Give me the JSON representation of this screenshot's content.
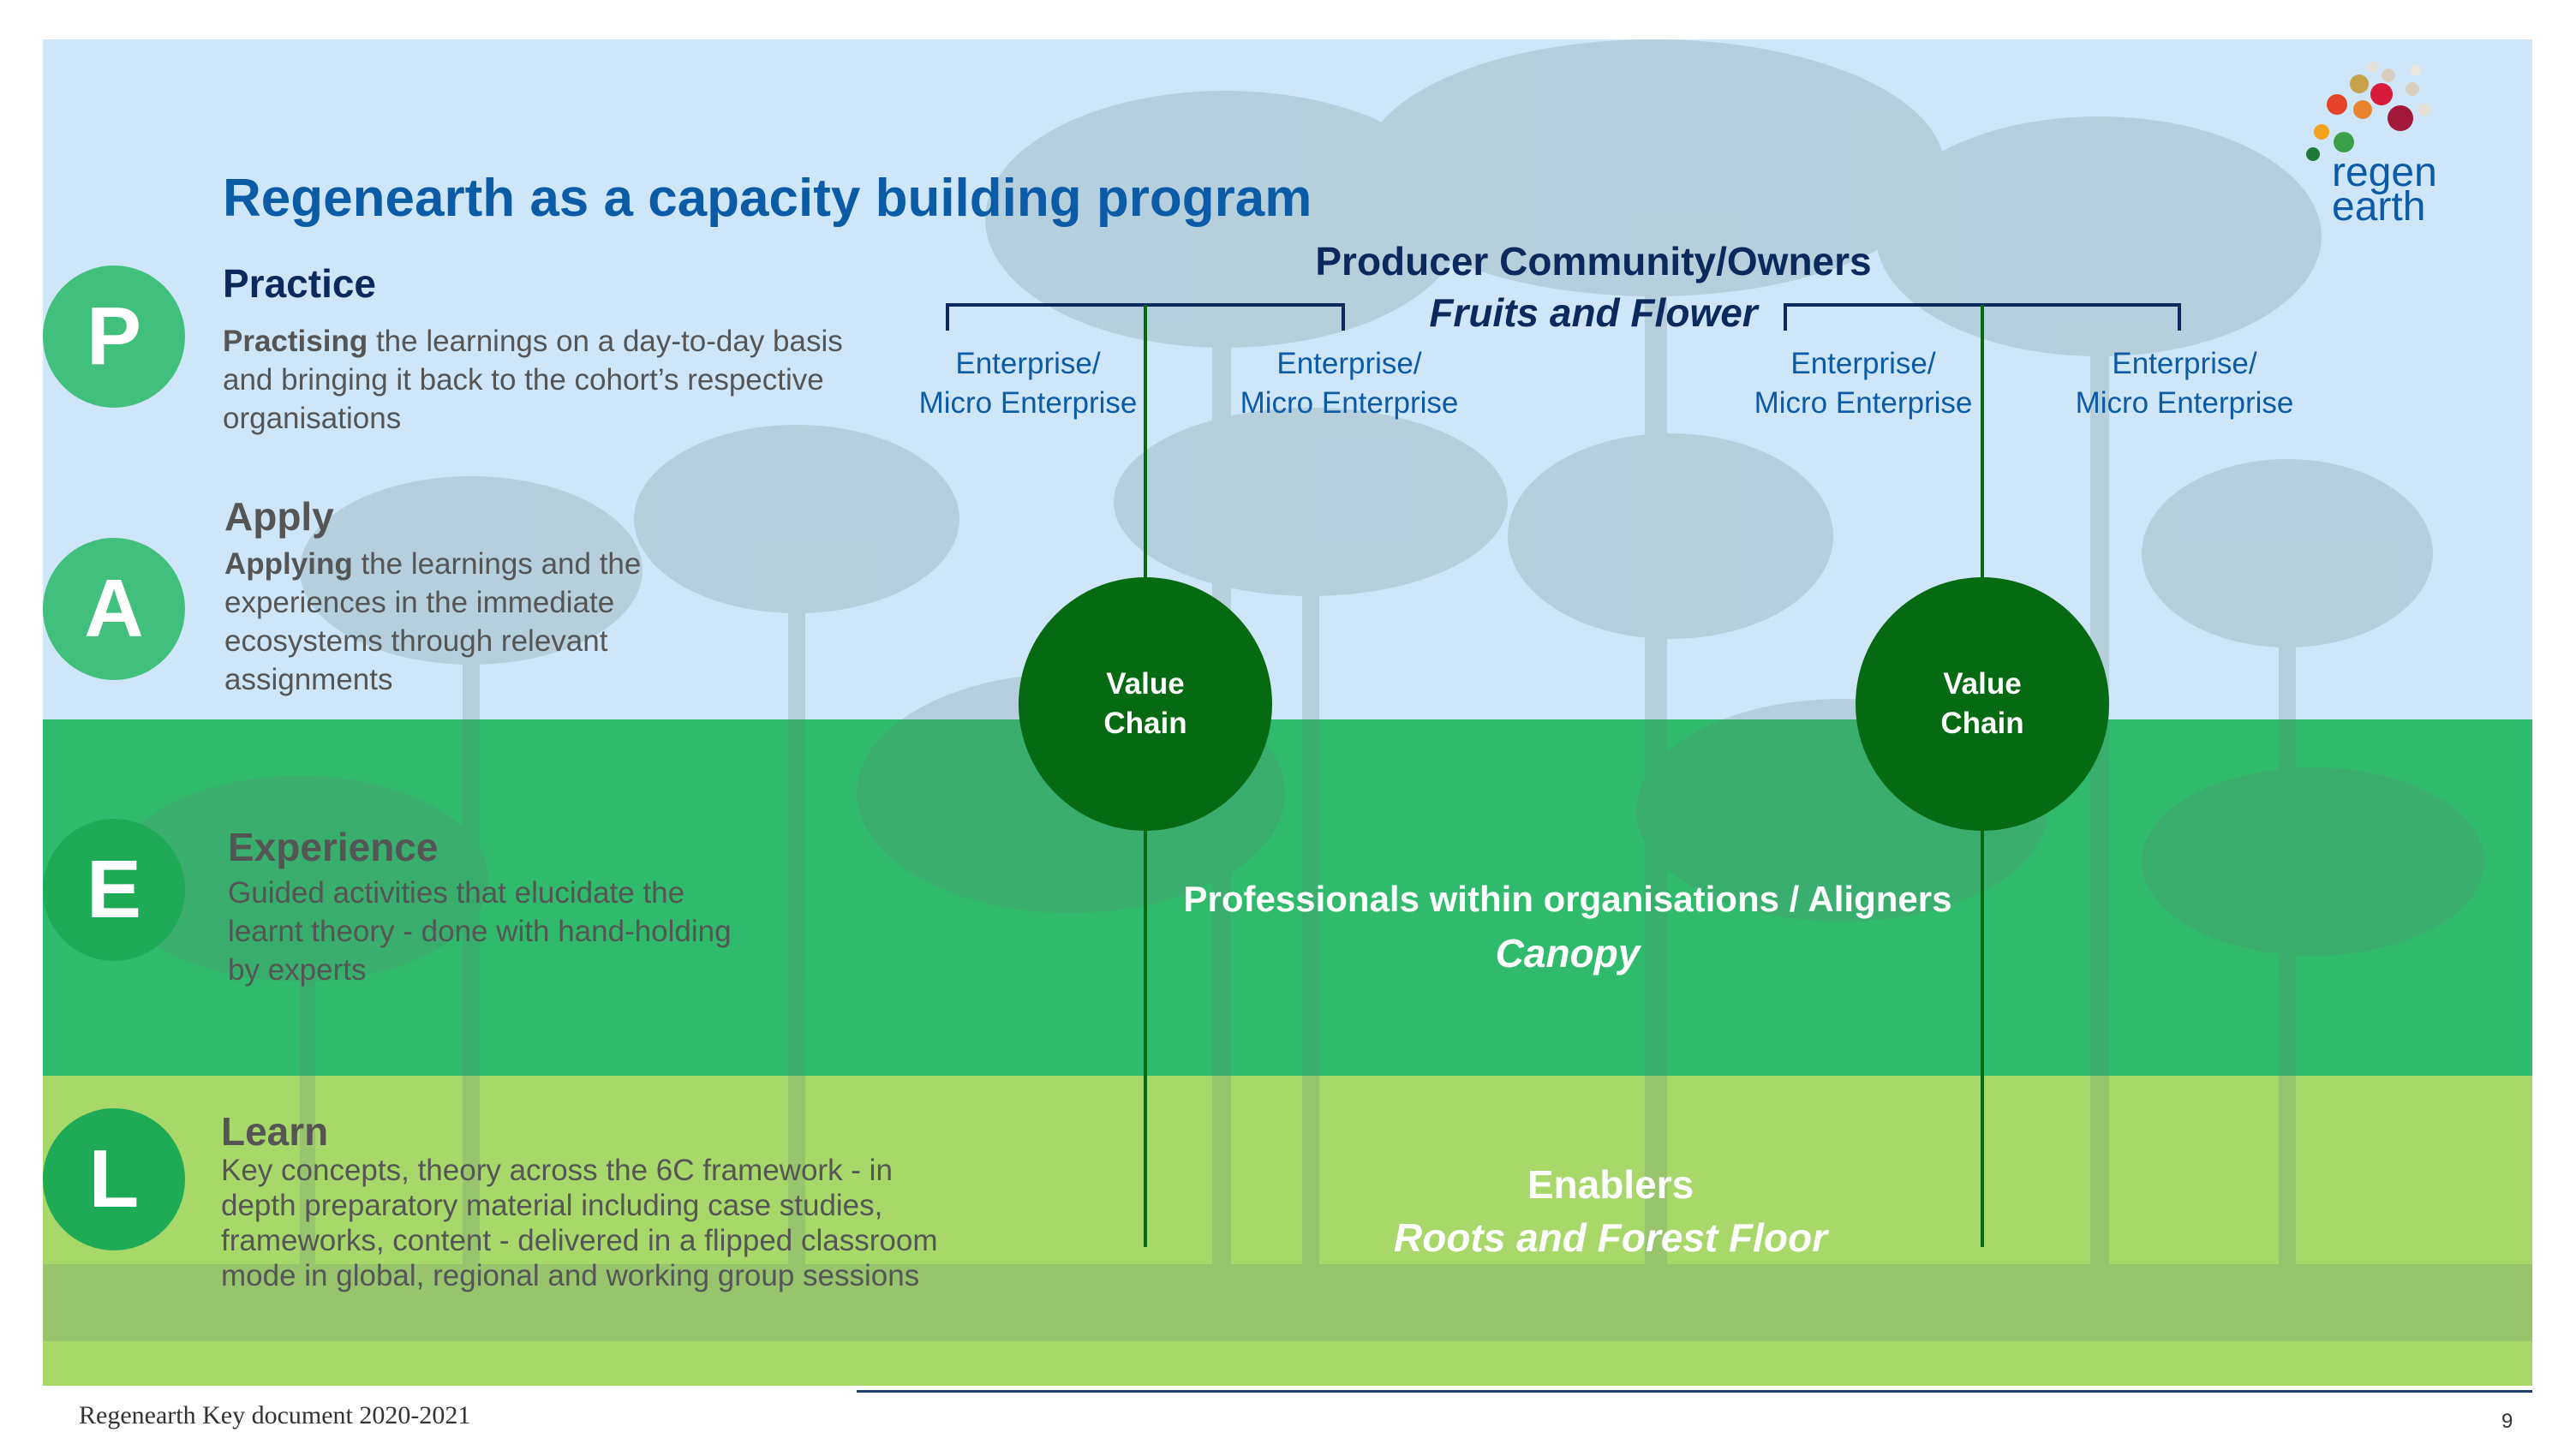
{
  "title": "Regenearth as a capacity building program",
  "logo": {
    "line1": "regen",
    "line2": "earth"
  },
  "steps": [
    {
      "letter": "P",
      "heading": "Practice",
      "bold": "Practising",
      "rest": " the learnings on a day-to-day basis and bringing it back to the cohort’s respective organisations"
    },
    {
      "letter": "A",
      "heading": "Apply",
      "bold": "Applying",
      "rest": " the learnings and the experiences in the immediate ecosystems through relevant assignments"
    },
    {
      "letter": "E",
      "heading": "Experience",
      "text": "Guided activities that elucidate the learnt theory - done with hand-holding by experts"
    },
    {
      "letter": "L",
      "heading": "Learn",
      "text": "Key concepts, theory across the 6C framework - in depth preparatory material including case studies, frameworks, content - delivered in a flipped classroom mode in global, regional and working group sessions"
    }
  ],
  "producer": {
    "heading": "Producer Community/Owners",
    "subheading": "Fruits and Flower"
  },
  "enterprises": [
    {
      "line1": "Enterprise/",
      "line2": "Micro Enterprise"
    },
    {
      "line1": "Enterprise/",
      "line2": "Micro Enterprise"
    },
    {
      "line1": "Enterprise/",
      "line2": "Micro Enterprise"
    },
    {
      "line1": "Enterprise/",
      "line2": "Micro Enterprise"
    }
  ],
  "value_chains": [
    {
      "line1": "Value",
      "line2": "Chain"
    },
    {
      "line1": "Value",
      "line2": "Chain"
    }
  ],
  "canopy": {
    "heading": "Professionals within organisations / Aligners",
    "subheading": "Canopy"
  },
  "enablers": {
    "heading": "Enablers",
    "subheading": "Roots and Forest Floor"
  },
  "footer": {
    "document": "Regenearth Key document 2020-2021",
    "page": "9"
  },
  "colors": {
    "title_blue": "#0b5ba7",
    "navy": "#0a2a5e",
    "value_chain_green": "#056a12",
    "sky": "#cfe6f8",
    "canopy_green": "#2fbb6b",
    "floor_green": "#a8d86a"
  }
}
